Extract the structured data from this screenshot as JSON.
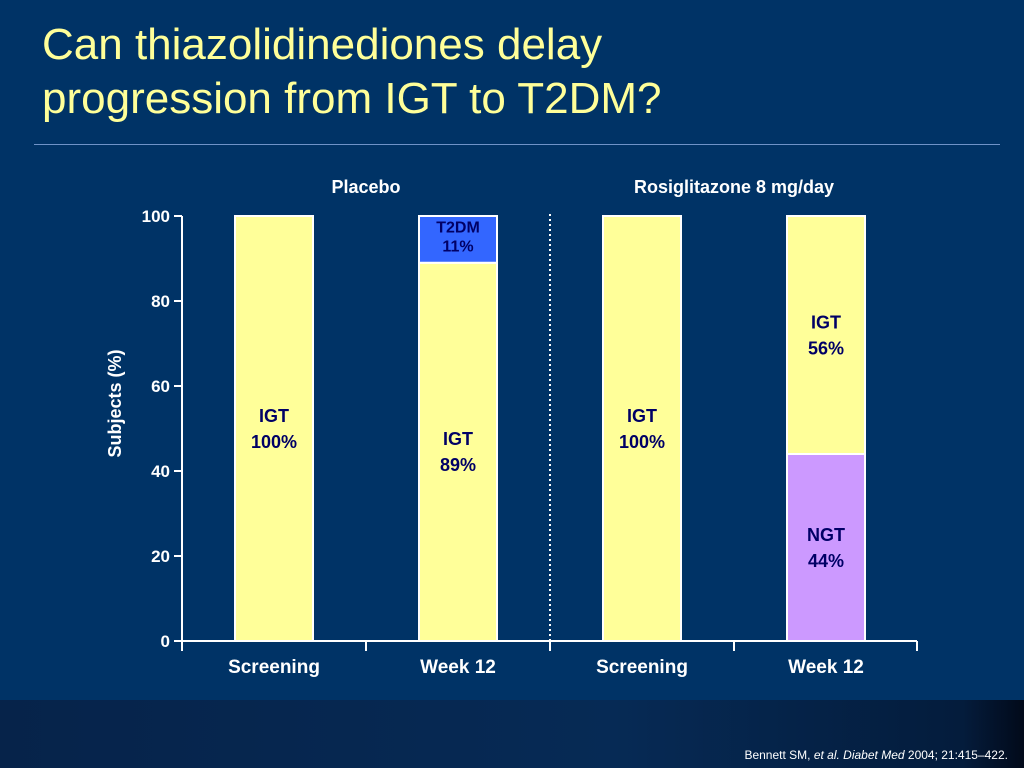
{
  "title": {
    "line1": "Can thiazolidinediones delay",
    "line2": "progression from IGT to T2DM?"
  },
  "citation": {
    "authors": "Bennett SM, ",
    "etal": "et al.",
    "journal": "Diabet  Med",
    "details": "2004; 21:415–422."
  },
  "colors": {
    "background": "#003366",
    "title": "#FFFF99",
    "igt": "#FFFF99",
    "t2dm": "#3366FF",
    "ngt": "#CC99FF"
  },
  "chart_data": {
    "type": "bar",
    "stacked": true,
    "ylabel": "Subjects (%)",
    "xlabel": "",
    "ylim": [
      0,
      100
    ],
    "yticks": [
      "0",
      "20",
      "40",
      "60",
      "80",
      "100"
    ],
    "groups": [
      "Placebo",
      "Rosiglitazone 8 mg/day"
    ],
    "categories": [
      "Screening",
      "Week 12",
      "Screening",
      "Week 12"
    ],
    "bars": [
      {
        "group": "Placebo",
        "category": "Screening",
        "segments": [
          {
            "name": "IGT",
            "value": 100,
            "label1": "IGT",
            "label2": "100%",
            "color": "#FFFF99",
            "text_color": "#000066"
          }
        ]
      },
      {
        "group": "Placebo",
        "category": "Week 12",
        "segments": [
          {
            "name": "IGT",
            "value": 89,
            "label1": "IGT",
            "label2": "89%",
            "color": "#FFFF99",
            "text_color": "#000066"
          },
          {
            "name": "T2DM",
            "value": 11,
            "label1": "T2DM",
            "label2": "11%",
            "color": "#3366FF",
            "text_color": "#000066"
          }
        ]
      },
      {
        "group": "Rosiglitazone 8 mg/day",
        "category": "Screening",
        "segments": [
          {
            "name": "IGT",
            "value": 100,
            "label1": "IGT",
            "label2": "100%",
            "color": "#FFFF99",
            "text_color": "#000066"
          }
        ]
      },
      {
        "group": "Rosiglitazone 8 mg/day",
        "category": "Week 12",
        "segments": [
          {
            "name": "NGT",
            "value": 44,
            "label1": "NGT",
            "label2": "44%",
            "color": "#CC99FF",
            "text_color": "#000066"
          },
          {
            "name": "IGT",
            "value": 56,
            "label1": "IGT",
            "label2": "56%",
            "color": "#FFFF99",
            "text_color": "#000066"
          }
        ]
      }
    ],
    "grid": false,
    "legend": "none"
  }
}
